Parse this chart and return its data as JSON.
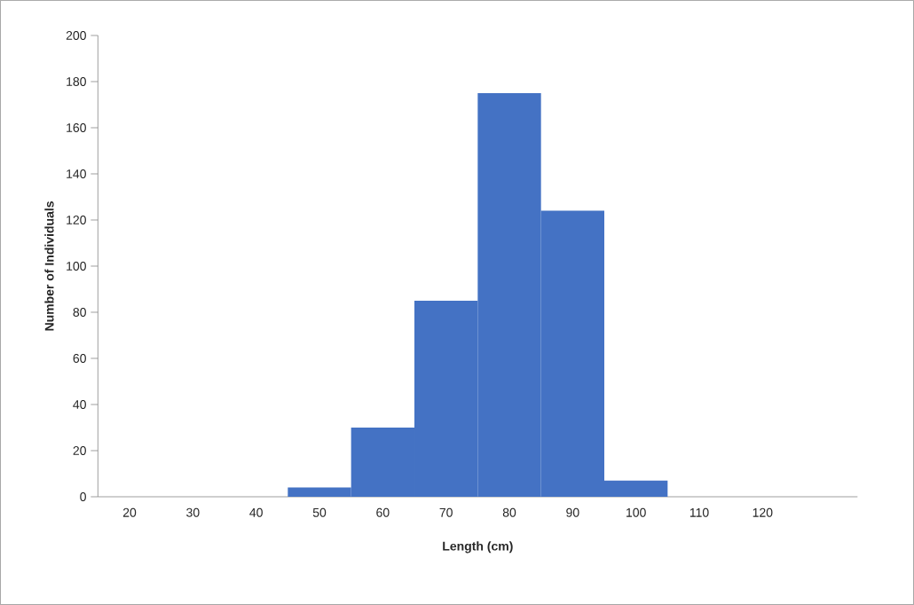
{
  "chart_data": {
    "type": "bar",
    "xlabel": "Length (cm)",
    "ylabel": "Number of Individuals",
    "categories": [
      "20",
      "30",
      "40",
      "50",
      "60",
      "70",
      "80",
      "90",
      "100",
      "110",
      "120",
      null
    ],
    "values": [
      null,
      null,
      null,
      4,
      30,
      85,
      175,
      124,
      7,
      null,
      null,
      null
    ],
    "color": "#4472c4",
    "ylim": [
      0,
      200
    ],
    "yticks": [
      0,
      20,
      40,
      60,
      80,
      100,
      120,
      140,
      160,
      180,
      200
    ]
  }
}
